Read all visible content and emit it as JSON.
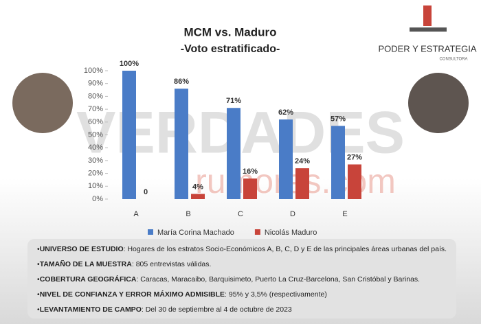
{
  "chart_data": {
    "type": "bar",
    "title": "MCM vs. Maduro",
    "subtitle": "-Voto estratificado-",
    "categories": [
      "A",
      "B",
      "C",
      "D",
      "E"
    ],
    "series": [
      {
        "name": "María Corina Machado",
        "color": "#4a7cc7",
        "values": [
          100,
          86,
          71,
          62,
          57
        ],
        "value_labels": [
          "100%",
          "86%",
          "71%",
          "62%",
          "57%"
        ]
      },
      {
        "name": "Nicolás Maduro",
        "color": "#c8443a",
        "values": [
          0,
          4,
          16,
          24,
          27
        ],
        "value_labels": [
          "0",
          "4%",
          "16%",
          "24%",
          "27%"
        ]
      }
    ],
    "ylim": [
      0,
      100
    ],
    "yticks": [
      {
        "value": 0,
        "label": "0%"
      },
      {
        "value": 10,
        "label": "10%"
      },
      {
        "value": 20,
        "label": "20%"
      },
      {
        "value": 30,
        "label": "30%"
      },
      {
        "value": 40,
        "label": "40%"
      },
      {
        "value": 50,
        "label": "50%"
      },
      {
        "value": 60,
        "label": "60%"
      },
      {
        "value": 70,
        "label": "70%"
      },
      {
        "value": 80,
        "label": "80%"
      },
      {
        "value": 90,
        "label": "90%"
      },
      {
        "value": 100,
        "label": "100%"
      }
    ],
    "legend": "bottom"
  },
  "logo": {
    "name": "PODER Y ESTRATEGIA",
    "sub": "CONSULTORA"
  },
  "watermark": {
    "main": "VERDADES",
    "sub": "rumores.com"
  },
  "notes": [
    {
      "label": "UNIVERSO DE ESTUDIO",
      "text": ": Hogares de los estratos Socio-Económicos A, B, C, D y E de las principales áreas urbanas del país."
    },
    {
      "label": "TAMAÑO DE LA MUESTRA",
      "text": ": 805 entrevistas válidas."
    },
    {
      "label": "COBERTURA GEOGRÁFICA",
      "text": ": Caracas, Maracaibo, Barquisimeto, Puerto La Cruz-Barcelona, San Cristóbal y Barinas."
    },
    {
      "label": "NIVEL DE CONFIANZA Y ERROR MÁXIMO ADMISIBLE",
      "text": ": 95% y 3,5% (respectivamente)"
    },
    {
      "label": "LEVANTAMIENTO DE CAMPO",
      "text": ": Del 30 de septiembre al 4 de octubre de 2023"
    }
  ]
}
